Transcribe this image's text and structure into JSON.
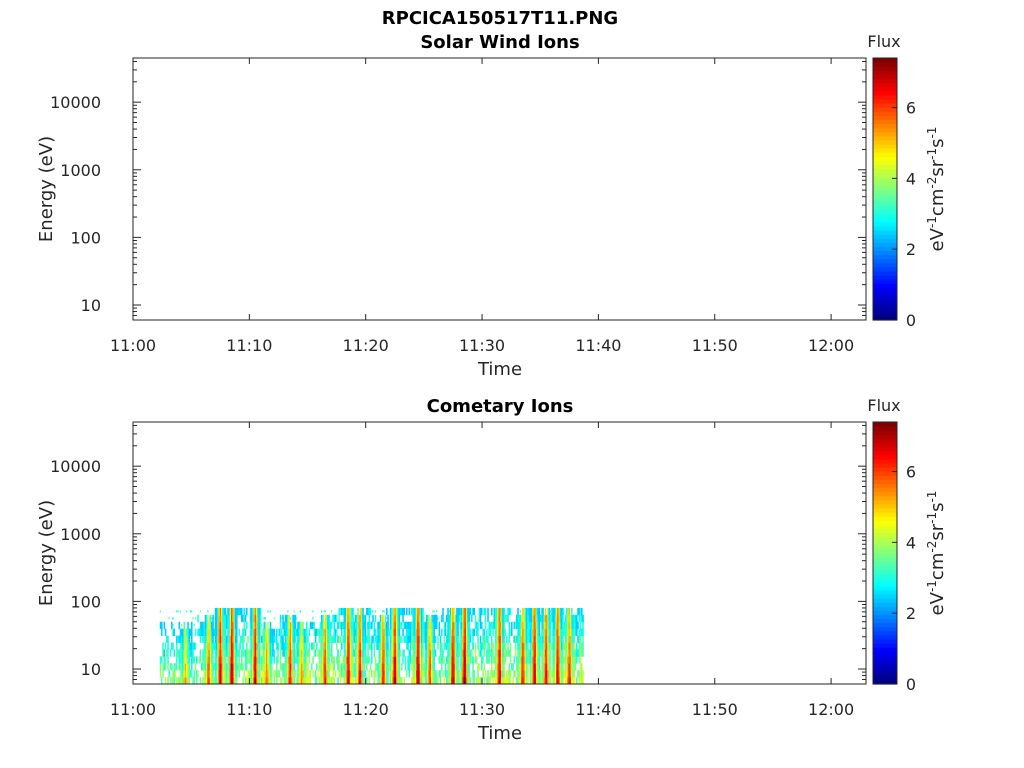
{
  "figure_title": "RPCICA150517T11.PNG",
  "colorbar": {
    "title": "Flux",
    "ticks": [
      "0",
      "2",
      "4",
      "6"
    ],
    "range": [
      0,
      7.4
    ],
    "colormap": "jet"
  },
  "chart_data": [
    {
      "type": "heatmap",
      "title": "Solar Wind Ions",
      "xlabel": "Time",
      "ylabel": "Energy (eV)",
      "x_ticks": [
        "11:00",
        "11:10",
        "11:20",
        "11:30",
        "11:40",
        "11:50",
        "12:00"
      ],
      "xlim": [
        "11:00",
        "12:03"
      ],
      "y_ticks": [
        "10",
        "100",
        "1000",
        "10000"
      ],
      "y_scale": "log",
      "ylim": [
        6,
        45000
      ],
      "clabel": "eV-1cm-2sr-1s-1",
      "data": "empty"
    },
    {
      "type": "heatmap",
      "title": "Cometary Ions",
      "xlabel": "Time",
      "ylabel": "Energy (eV)",
      "x_ticks": [
        "11:00",
        "11:10",
        "11:20",
        "11:30",
        "11:40",
        "11:50",
        "12:00"
      ],
      "xlim": [
        "11:00",
        "12:03"
      ],
      "y_ticks": [
        "10",
        "100",
        "1000",
        "10000"
      ],
      "y_scale": "log",
      "ylim": [
        6,
        45000
      ],
      "clabel": "eV-1cm-2sr-1s-1",
      "data_time_range": [
        "11:02",
        "11:38"
      ],
      "max_energy_eV": 80,
      "bursts": [
        {
          "t": "11:04",
          "flux": 5.5,
          "emax": 40
        },
        {
          "t": "11:06",
          "flux": 6.2,
          "emax": 55
        },
        {
          "t": "11:07",
          "flux": 7.0,
          "emax": 80
        },
        {
          "t": "11:08",
          "flux": 7.2,
          "emax": 80
        },
        {
          "t": "11:10",
          "flux": 7.0,
          "emax": 80
        },
        {
          "t": "11:11",
          "flux": 6.0,
          "emax": 45
        },
        {
          "t": "11:13",
          "flux": 6.6,
          "emax": 60
        },
        {
          "t": "11:14",
          "flux": 5.8,
          "emax": 45
        },
        {
          "t": "11:16",
          "flux": 6.5,
          "emax": 60
        },
        {
          "t": "11:18",
          "flux": 7.0,
          "emax": 80
        },
        {
          "t": "11:19",
          "flux": 6.8,
          "emax": 70
        },
        {
          "t": "11:21",
          "flux": 6.6,
          "emax": 60
        },
        {
          "t": "11:22",
          "flux": 7.1,
          "emax": 80
        },
        {
          "t": "11:24",
          "flux": 7.2,
          "emax": 80
        },
        {
          "t": "11:25",
          "flux": 6.3,
          "emax": 55
        },
        {
          "t": "11:27",
          "flux": 7.0,
          "emax": 70
        },
        {
          "t": "11:28",
          "flux": 7.3,
          "emax": 80
        },
        {
          "t": "11:31",
          "flux": 7.0,
          "emax": 80
        },
        {
          "t": "11:33",
          "flux": 6.6,
          "emax": 70
        },
        {
          "t": "11:34",
          "flux": 7.0,
          "emax": 80
        },
        {
          "t": "11:35",
          "flux": 6.8,
          "emax": 70
        },
        {
          "t": "11:36",
          "flux": 6.9,
          "emax": 80
        },
        {
          "t": "11:37",
          "flux": 6.5,
          "emax": 70
        }
      ]
    }
  ]
}
